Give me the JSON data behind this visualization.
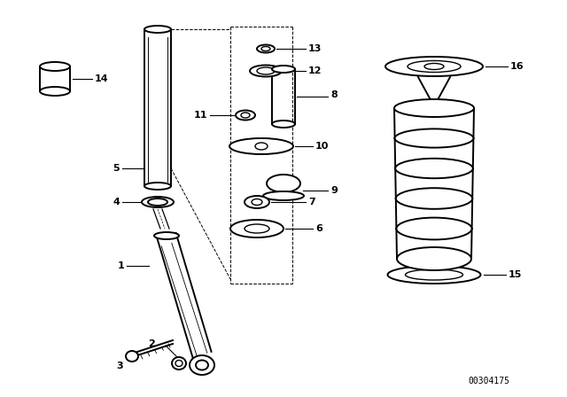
{
  "bg_color": "#ffffff",
  "line_color": "#000000",
  "figure_width": 6.4,
  "figure_height": 4.48,
  "dpi": 100,
  "watermark": "00304175"
}
